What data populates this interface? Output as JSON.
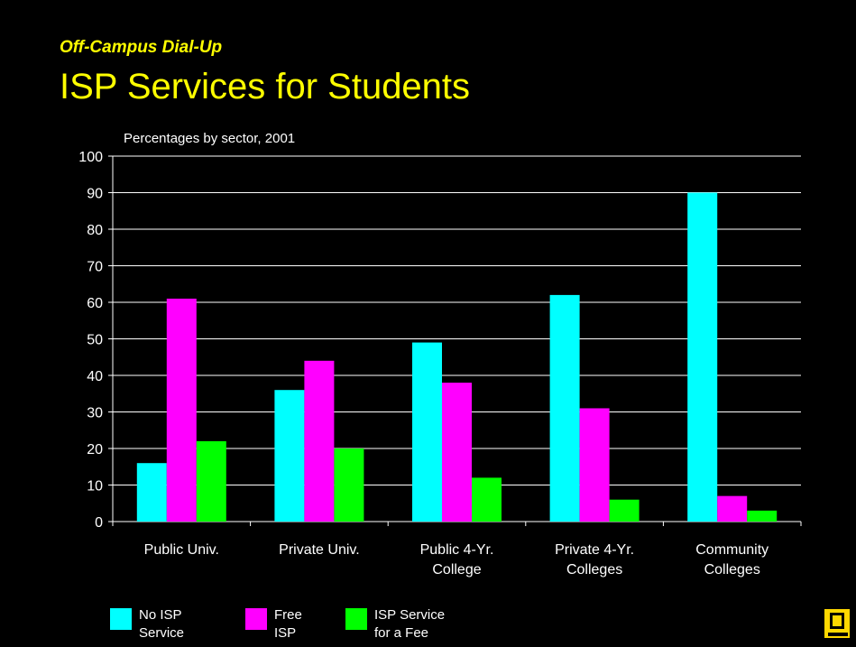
{
  "header": {
    "kicker": "Off-Campus Dial-Up",
    "title": "ISP Services for Students"
  },
  "chart_data": {
    "type": "bar",
    "subtitle": "Percentages by sector, 2001",
    "categories": [
      [
        "Public Univ."
      ],
      [
        "Private Univ."
      ],
      [
        "Public 4-Yr.",
        "College"
      ],
      [
        "Private 4-Yr.",
        "Colleges"
      ],
      [
        "Community",
        "Colleges"
      ]
    ],
    "series": [
      {
        "name": [
          "No ISP",
          "Service"
        ],
        "color": "#00FFFF",
        "values": [
          16,
          36,
          49,
          62,
          90
        ]
      },
      {
        "name": [
          "Free",
          "ISP"
        ],
        "color": "#FF00FF",
        "values": [
          61,
          44,
          38,
          31,
          7
        ]
      },
      {
        "name": [
          "ISP Service",
          "for a Fee"
        ],
        "color": "#00FF00",
        "values": [
          22,
          20,
          12,
          6,
          3
        ]
      }
    ],
    "ylim": [
      0,
      100
    ],
    "yticks": [
      0,
      10,
      20,
      30,
      40,
      50,
      60,
      70,
      80,
      90,
      100
    ],
    "grid": true,
    "legend": "bottom"
  },
  "logo_icon": "computer-terminal-icon"
}
